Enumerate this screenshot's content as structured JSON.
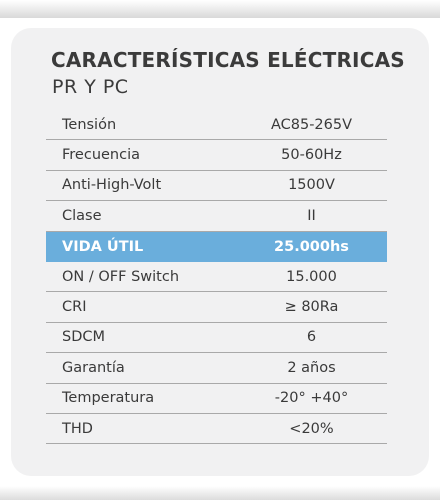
{
  "header": {
    "title": "CARACTERÍSTICAS ELÉCTRICAS",
    "subtitle": "PR Y PC"
  },
  "specs": [
    {
      "label": "Tensión",
      "value": "AC85-265V"
    },
    {
      "label": "Frecuencia",
      "value": "50-60Hz"
    },
    {
      "label": "Anti-High-Volt",
      "value": "1500V"
    },
    {
      "label": "Clase",
      "value": "II"
    },
    {
      "label": "VIDA ÚTIL",
      "value": "25.000hs"
    },
    {
      "label": "ON / OFF Switch",
      "value": "15.000"
    },
    {
      "label": "CRI",
      "value": "≥ 80Ra"
    },
    {
      "label": "SDCM",
      "value": "6"
    },
    {
      "label": "Garantía",
      "value": "2 años"
    },
    {
      "label": "Temperatura",
      "value": "-20° +40°"
    },
    {
      "label": "THD",
      "value": "<20%"
    }
  ],
  "colors": {
    "highlight": "#6aaedc",
    "card": "#f1f1f2",
    "text": "#3a3a3a"
  }
}
